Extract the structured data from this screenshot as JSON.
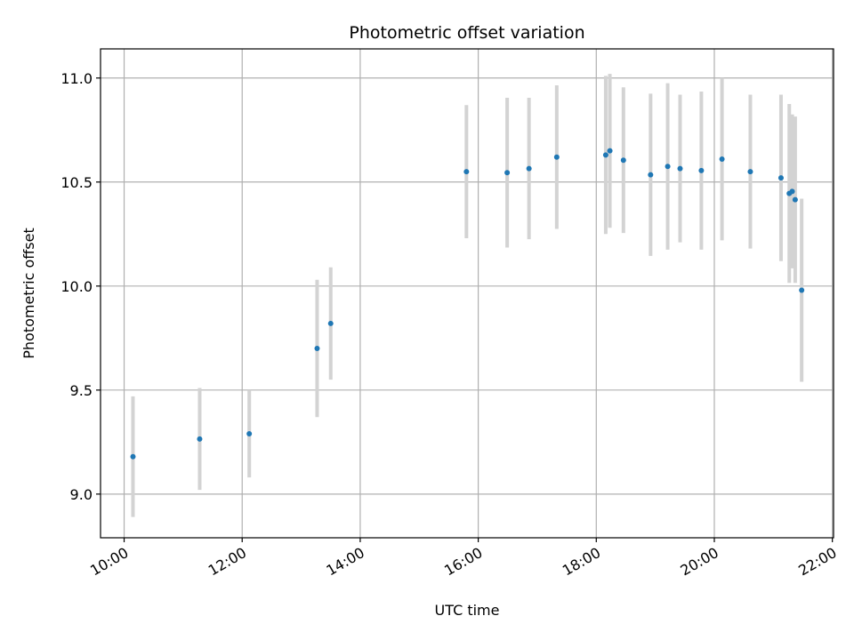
{
  "chart_data": {
    "type": "scatter",
    "title": "Photometric offset variation",
    "xlabel": "UTC time",
    "ylabel": "Photometric offset",
    "x_unit": "UTC hours",
    "xlim": [
      9.6,
      22.02
    ],
    "ylim": [
      8.79,
      11.14
    ],
    "grid": true,
    "x_ticks": [
      {
        "value": 10,
        "label": "10:00"
      },
      {
        "value": 12,
        "label": "12:00"
      },
      {
        "value": 14,
        "label": "14:00"
      },
      {
        "value": 16,
        "label": "16:00"
      },
      {
        "value": 18,
        "label": "18:00"
      },
      {
        "value": 20,
        "label": "20:00"
      },
      {
        "value": 22,
        "label": "22:00"
      }
    ],
    "y_ticks": [
      {
        "value": 9.0,
        "label": "9.0"
      },
      {
        "value": 9.5,
        "label": "9.5"
      },
      {
        "value": 10.0,
        "label": "10.0"
      },
      {
        "value": 10.5,
        "label": "10.5"
      },
      {
        "value": 11.0,
        "label": "11.0"
      }
    ],
    "colors": {
      "point": "#1f77b4",
      "errorbar": "#d3d3d3",
      "grid": "#b0b0b0"
    },
    "points": [
      {
        "x": 10.15,
        "y": 9.18,
        "err": 0.29
      },
      {
        "x": 11.28,
        "y": 9.265,
        "err": 0.245
      },
      {
        "x": 12.12,
        "y": 9.29,
        "err": 0.21
      },
      {
        "x": 13.27,
        "y": 9.7,
        "err": 0.33
      },
      {
        "x": 13.5,
        "y": 9.82,
        "err": 0.27
      },
      {
        "x": 15.8,
        "y": 10.55,
        "err": 0.32
      },
      {
        "x": 16.49,
        "y": 10.545,
        "err": 0.36
      },
      {
        "x": 16.86,
        "y": 10.565,
        "err": 0.34
      },
      {
        "x": 17.33,
        "y": 10.62,
        "err": 0.345
      },
      {
        "x": 18.16,
        "y": 10.63,
        "err": 0.38
      },
      {
        "x": 18.23,
        "y": 10.65,
        "err": 0.37
      },
      {
        "x": 18.46,
        "y": 10.605,
        "err": 0.35
      },
      {
        "x": 18.92,
        "y": 10.535,
        "err": 0.39
      },
      {
        "x": 19.21,
        "y": 10.575,
        "err": 0.4
      },
      {
        "x": 19.42,
        "y": 10.565,
        "err": 0.355
      },
      {
        "x": 19.78,
        "y": 10.555,
        "err": 0.38
      },
      {
        "x": 20.13,
        "y": 10.61,
        "err": 0.39
      },
      {
        "x": 20.61,
        "y": 10.55,
        "err": 0.37
      },
      {
        "x": 21.13,
        "y": 10.52,
        "err": 0.4
      },
      {
        "x": 21.27,
        "y": 10.445,
        "err": 0.43
      },
      {
        "x": 21.32,
        "y": 10.455,
        "err": 0.37
      },
      {
        "x": 21.37,
        "y": 10.415,
        "err": 0.4
      },
      {
        "x": 21.48,
        "y": 9.98,
        "err": 0.44
      }
    ]
  }
}
